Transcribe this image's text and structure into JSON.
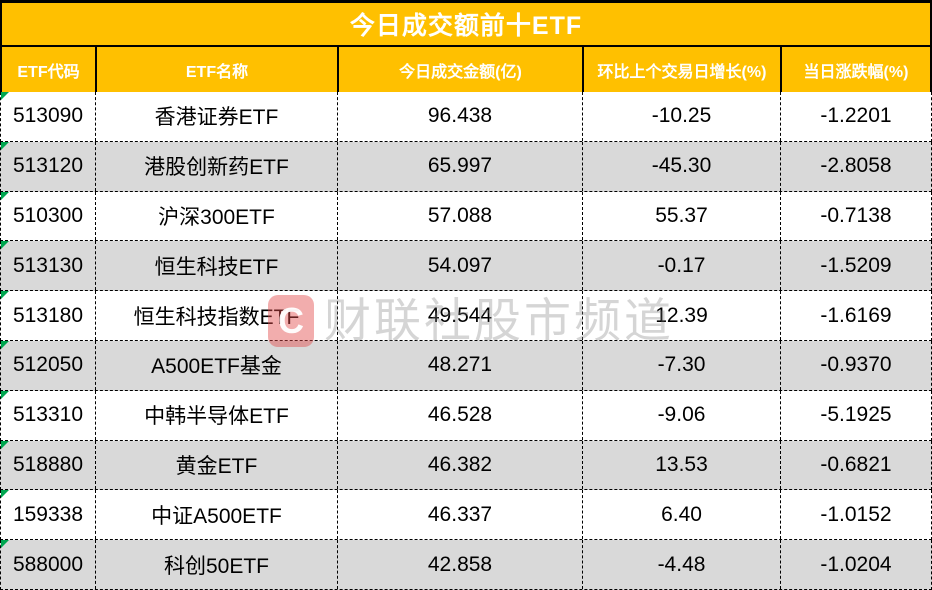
{
  "title": "今日成交额前十ETF",
  "columns": [
    "ETF代码",
    "ETF名称",
    "今日成交金额(亿)",
    "环比上个交易日增长(%)",
    "当日涨跌幅(%)"
  ],
  "rows": [
    {
      "code": "513090",
      "name": "香港证券ETF",
      "volume": "96.438",
      "growth": "-10.25",
      "change": "-1.2201"
    },
    {
      "code": "513120",
      "name": "港股创新药ETF",
      "volume": "65.997",
      "growth": "-45.30",
      "change": "-2.8058"
    },
    {
      "code": "510300",
      "name": "沪深300ETF",
      "volume": "57.088",
      "growth": "55.37",
      "change": "-0.7138"
    },
    {
      "code": "513130",
      "name": "恒生科技ETF",
      "volume": "54.097",
      "growth": "-0.17",
      "change": "-1.5209"
    },
    {
      "code": "513180",
      "name": "恒生科技指数ETF",
      "volume": "49.544",
      "growth": "12.39",
      "change": "-1.6169"
    },
    {
      "code": "512050",
      "name": "A500ETF基金",
      "volume": "48.271",
      "growth": "-7.30",
      "change": "-0.9370"
    },
    {
      "code": "513310",
      "name": "中韩半导体ETF",
      "volume": "46.528",
      "growth": "-9.06",
      "change": "-5.1925"
    },
    {
      "code": "518880",
      "name": "黄金ETF",
      "volume": "46.382",
      "growth": "13.53",
      "change": "-0.6821"
    },
    {
      "code": "159338",
      "name": "中证A500ETF",
      "volume": "46.337",
      "growth": "6.40",
      "change": "-1.0152"
    },
    {
      "code": "588000",
      "name": "科创50ETF",
      "volume": "42.858",
      "growth": "-4.48",
      "change": "-1.0204"
    }
  ],
  "watermark": {
    "logo_letter": "C",
    "text": "财联社股市频道"
  },
  "colors": {
    "header_bg": "#FFC000",
    "header_text": "#FFFFFF",
    "row_alt_bg": "#D9D9D9",
    "border": "#000000",
    "error_triangle": "#00A650",
    "watermark_red": "rgba(226,74,74,0.45)"
  },
  "chart_data": {
    "type": "table",
    "title": "今日成交额前十ETF",
    "columns": [
      "ETF代码",
      "ETF名称",
      "今日成交金额(亿)",
      "环比上个交易日增长(%)",
      "当日涨跌幅(%)"
    ],
    "rows": [
      [
        "513090",
        "香港证券ETF",
        96.438,
        -10.25,
        -1.2201
      ],
      [
        "513120",
        "港股创新药ETF",
        65.997,
        -45.3,
        -2.8058
      ],
      [
        "510300",
        "沪深300ETF",
        57.088,
        55.37,
        -0.7138
      ],
      [
        "513130",
        "恒生科技ETF",
        54.097,
        -0.17,
        -1.5209
      ],
      [
        "513180",
        "恒生科技指数ETF",
        49.544,
        12.39,
        -1.6169
      ],
      [
        "512050",
        "A500ETF基金",
        48.271,
        -7.3,
        -0.937
      ],
      [
        "513310",
        "中韩半导体ETF",
        46.528,
        -9.06,
        -5.1925
      ],
      [
        "518880",
        "黄金ETF",
        46.382,
        13.53,
        -0.6821
      ],
      [
        "159338",
        "中证A500ETF",
        46.337,
        6.4,
        -1.0152
      ],
      [
        "588000",
        "科创50ETF",
        42.858,
        -4.48,
        -1.0204
      ]
    ]
  }
}
